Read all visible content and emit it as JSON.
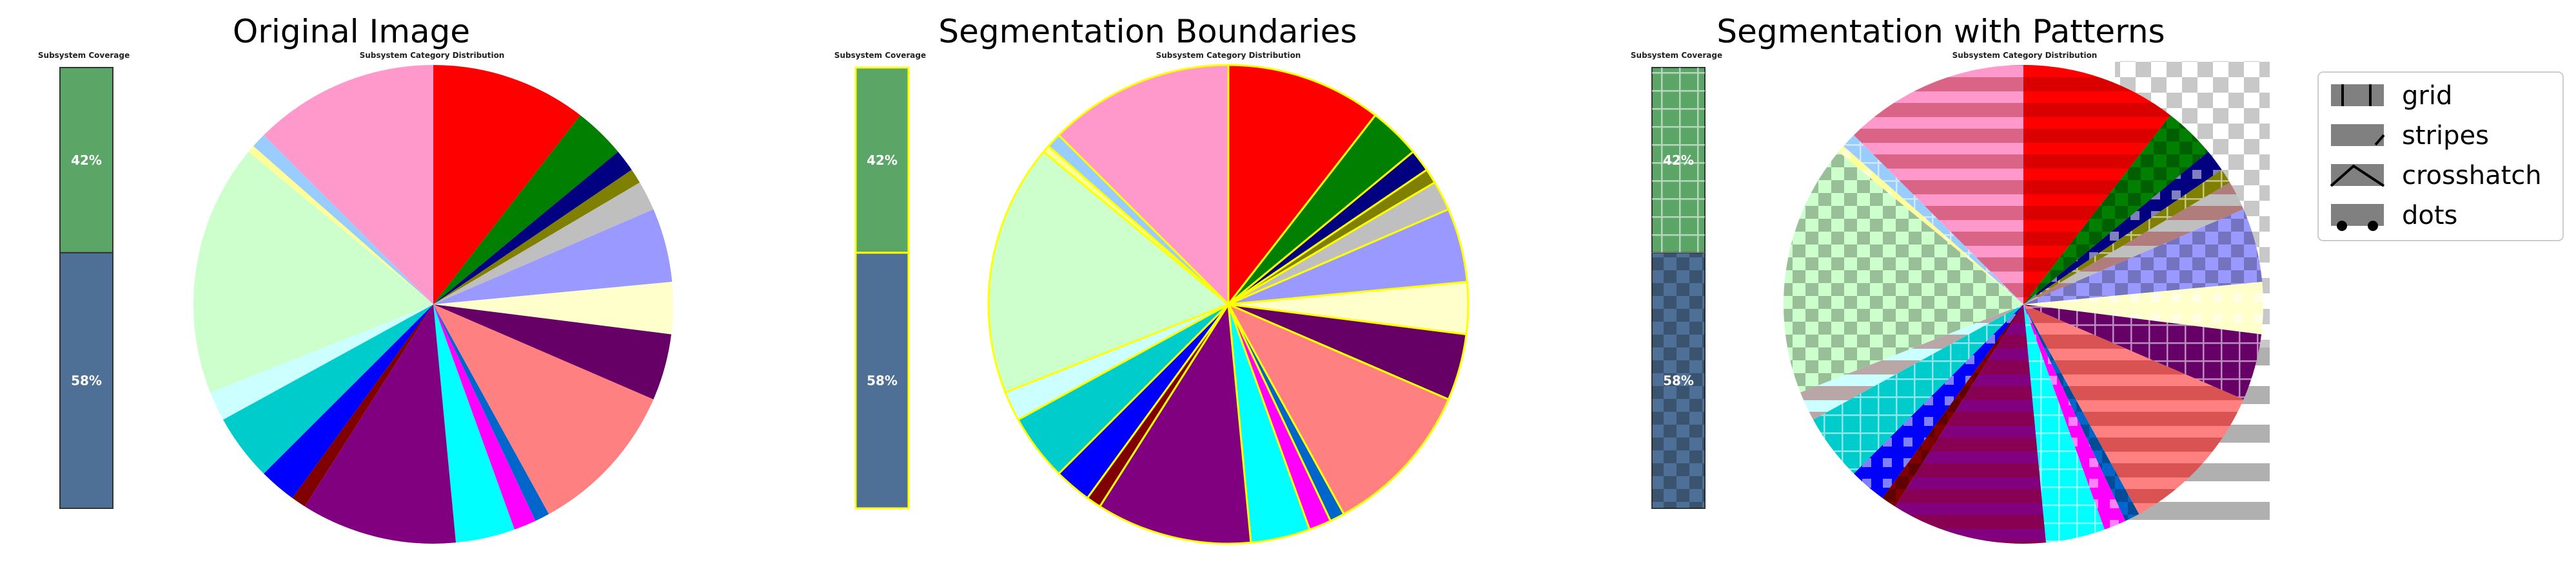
{
  "panels": [
    {
      "title": "Original Image"
    },
    {
      "title": "Segmentation Boundaries"
    },
    {
      "title": "Segmentation with Patterns"
    }
  ],
  "legend": {
    "items": [
      {
        "label": "grid"
      },
      {
        "label": "stripes"
      },
      {
        "label": "crosshatch"
      },
      {
        "label": "dots"
      }
    ]
  },
  "chart_data": [
    {
      "type": "bar",
      "subtitle": "Subsystem Coverage",
      "stacked": true,
      "series": [
        {
          "name": "",
          "value": 58,
          "label": "58%",
          "color": "#4e7096"
        },
        {
          "name": "",
          "value": 42,
          "label": "42%",
          "color": "#5ba667"
        }
      ]
    },
    {
      "type": "pie",
      "subtitle": "Subsystem Category Distribution",
      "start_angle_deg": 90,
      "direction": "clockwise",
      "slices": [
        {
          "value": 10.5,
          "color": "#ff0000"
        },
        {
          "value": 3.5,
          "color": "#007f00"
        },
        {
          "value": 1.5,
          "color": "#000080"
        },
        {
          "value": 1.0,
          "color": "#808000"
        },
        {
          "value": 2.0,
          "color": "#bfbfbf"
        },
        {
          "value": 5.0,
          "color": "#9999ff"
        },
        {
          "value": 3.5,
          "color": "#ffffcc"
        },
        {
          "value": 4.5,
          "color": "#660066"
        },
        {
          "value": 10.5,
          "color": "#ff8080"
        },
        {
          "value": 1.0,
          "color": "#0066cc"
        },
        {
          "value": 1.5,
          "color": "#ff00ff"
        },
        {
          "value": 4.0,
          "color": "#00ffff"
        },
        {
          "value": 10.5,
          "color": "#800080"
        },
        {
          "value": 1.0,
          "color": "#800000"
        },
        {
          "value": 2.5,
          "color": "#0000ff"
        },
        {
          "value": 4.5,
          "color": "#00cccc"
        },
        {
          "value": 2.0,
          "color": "#ccffff"
        },
        {
          "value": 17.0,
          "color": "#ccffcc"
        },
        {
          "value": 0.5,
          "color": "#ffff99"
        },
        {
          "value": 1.0,
          "color": "#99ccff"
        },
        {
          "value": 12.5,
          "color": "#ff99cc"
        }
      ]
    }
  ]
}
